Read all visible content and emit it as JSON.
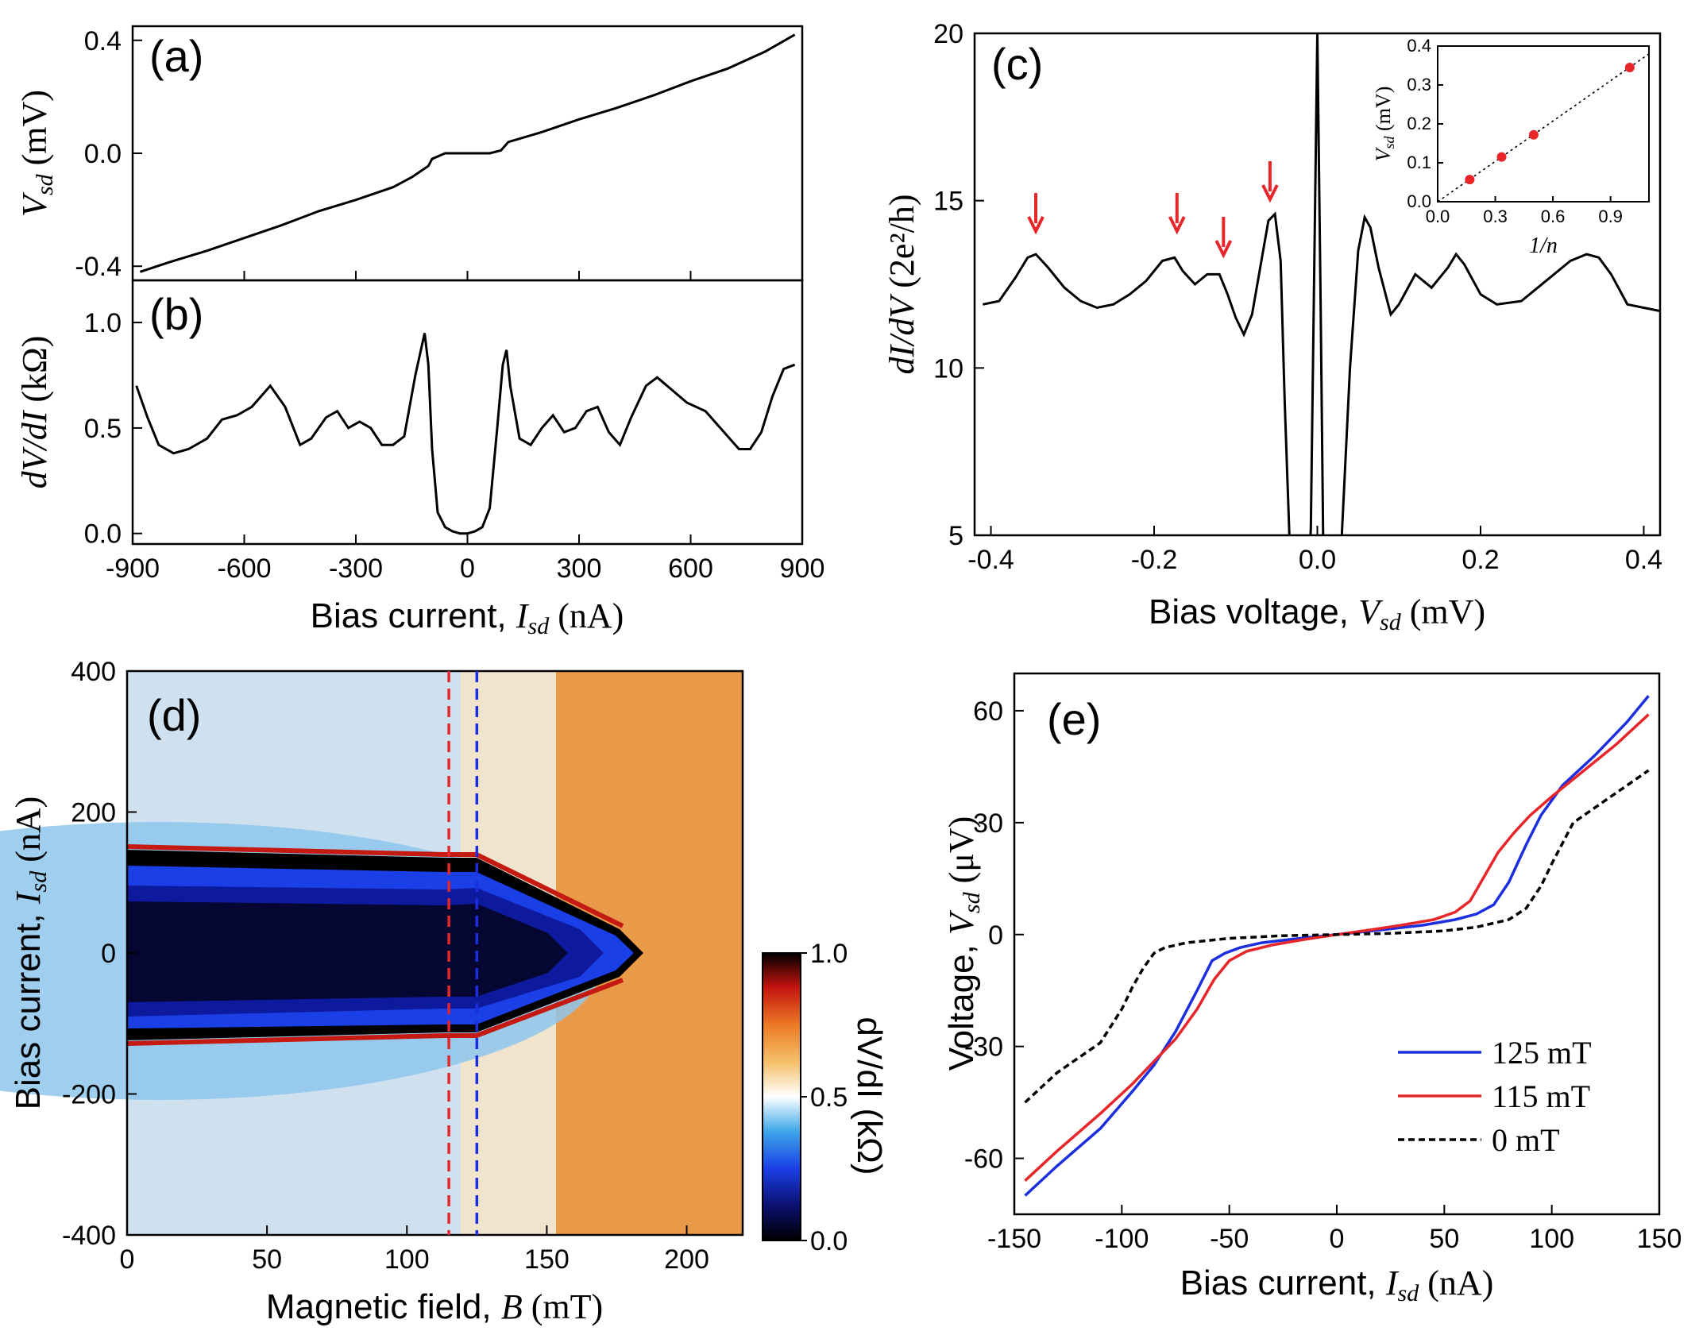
{
  "chart_data": [
    {
      "panel": "(a)",
      "type": "line",
      "xlim": [
        -900,
        900
      ],
      "ylim": [
        -0.45,
        0.45
      ],
      "xticks": [
        "-900",
        "-600",
        "-300",
        "0",
        "300",
        "600",
        "900"
      ],
      "yticks": [
        "-0.4",
        "0.0",
        "0.4"
      ],
      "ylabel": {
        "symbol": "V",
        "sub": "sd",
        "unit": " (mV)"
      },
      "series": [
        {
          "x": [
            -880,
            -800,
            -700,
            -600,
            -500,
            -400,
            -300,
            -200,
            -150,
            -105,
            -95,
            -60,
            0,
            60,
            90,
            110,
            200,
            300,
            400,
            500,
            600,
            700,
            800,
            880
          ],
          "y": [
            -0.42,
            -0.385,
            -0.345,
            -0.3,
            -0.255,
            -0.205,
            -0.165,
            -0.12,
            -0.085,
            -0.045,
            -0.02,
            0.0,
            0.0,
            0.0,
            0.01,
            0.04,
            0.075,
            0.12,
            0.16,
            0.205,
            0.255,
            0.3,
            0.36,
            0.42
          ]
        }
      ]
    },
    {
      "panel": "(b)",
      "type": "line",
      "xlim": [
        -900,
        900
      ],
      "ylim": [
        -0.05,
        1.2
      ],
      "xticks": [
        "-900",
        "-600",
        "-300",
        "0",
        "300",
        "600",
        "900"
      ],
      "yticks": [
        "0.0",
        "0.5",
        "1.0"
      ],
      "xlabel": {
        "text": "Bias current, ",
        "symbol": "I",
        "sub": "sd",
        "unit": " (nA)"
      },
      "ylabel": {
        "text": "",
        "symbol": "dV/dI",
        "sub": "",
        "unit": " (kΩ)"
      },
      "series": [
        {
          "x": [
            -890,
            -860,
            -830,
            -790,
            -750,
            -700,
            -660,
            -620,
            -580,
            -530,
            -490,
            -450,
            -420,
            -380,
            -350,
            -320,
            -290,
            -260,
            -230,
            -200,
            -170,
            -140,
            -115,
            -105,
            -95,
            -80,
            -60,
            -40,
            -20,
            0,
            20,
            40,
            60,
            80,
            95,
            105,
            115,
            140,
            170,
            200,
            230,
            260,
            290,
            320,
            350,
            380,
            410,
            440,
            480,
            510,
            550,
            590,
            640,
            690,
            730,
            760,
            790,
            820,
            850,
            880
          ],
          "y": [
            0.7,
            0.55,
            0.42,
            0.38,
            0.4,
            0.45,
            0.54,
            0.56,
            0.6,
            0.7,
            0.6,
            0.42,
            0.45,
            0.55,
            0.58,
            0.5,
            0.53,
            0.5,
            0.42,
            0.42,
            0.46,
            0.75,
            0.95,
            0.8,
            0.4,
            0.1,
            0.03,
            0.01,
            0.0,
            0.0,
            0.01,
            0.03,
            0.12,
            0.5,
            0.8,
            0.87,
            0.7,
            0.45,
            0.42,
            0.5,
            0.56,
            0.48,
            0.5,
            0.58,
            0.6,
            0.48,
            0.42,
            0.55,
            0.7,
            0.74,
            0.68,
            0.62,
            0.58,
            0.48,
            0.4,
            0.4,
            0.48,
            0.65,
            0.78,
            0.8
          ]
        }
      ]
    },
    {
      "panel": "(c)",
      "type": "line",
      "xlim": [
        -0.42,
        0.42
      ],
      "ylim": [
        5,
        20
      ],
      "xticks": [
        "-0.4",
        "-0.2",
        "0.0",
        "0.2",
        "0.4"
      ],
      "yticks": [
        "5",
        "10",
        "15",
        "20"
      ],
      "xlabel": {
        "text": "Bias voltage, ",
        "symbol": "V",
        "sub": "sd",
        "unit": " (mV)"
      },
      "ylabel": {
        "text": "",
        "symbol": "dI/dV",
        "sub": "",
        "unit": " (2e²/h)"
      },
      "annotations": "arrows",
      "arrows_x": [
        -0.345,
        -0.172,
        -0.115,
        -0.058
      ],
      "series": [
        {
          "x": [
            -0.41,
            -0.39,
            -0.37,
            -0.355,
            -0.345,
            -0.33,
            -0.31,
            -0.29,
            -0.27,
            -0.25,
            -0.23,
            -0.21,
            -0.19,
            -0.175,
            -0.165,
            -0.15,
            -0.135,
            -0.12,
            -0.11,
            -0.1,
            -0.09,
            -0.08,
            -0.07,
            -0.06,
            -0.052,
            -0.045,
            -0.04,
            -0.03,
            -0.015,
            -0.008,
            0.0,
            0.004,
            0.008,
            0.012,
            0.02,
            0.03,
            0.04,
            0.05,
            0.058,
            0.065,
            0.075,
            0.09,
            0.1,
            0.12,
            0.14,
            0.16,
            0.17,
            0.18,
            0.2,
            0.22,
            0.25,
            0.28,
            0.31,
            0.33,
            0.345,
            0.36,
            0.38,
            0.4,
            0.42
          ],
          "y": [
            11.9,
            12.0,
            12.7,
            13.3,
            13.4,
            13.0,
            12.4,
            12.0,
            11.8,
            11.9,
            12.2,
            12.6,
            13.2,
            13.3,
            12.9,
            12.5,
            12.8,
            12.8,
            12.2,
            11.5,
            11.0,
            11.6,
            13.0,
            14.4,
            14.6,
            13.2,
            9.0,
            2.0,
            2.0,
            5.2,
            20.0,
            12.0,
            3.0,
            2.0,
            2.0,
            5.0,
            10.0,
            13.5,
            14.5,
            14.2,
            13.0,
            11.6,
            11.9,
            12.8,
            12.4,
            13.0,
            13.4,
            13.1,
            12.2,
            11.9,
            12.0,
            12.6,
            13.2,
            13.4,
            13.3,
            12.8,
            11.9,
            11.8,
            11.7
          ]
        }
      ]
    },
    {
      "panel": "(c) inset",
      "type": "scatter",
      "xlim": [
        0,
        1.1
      ],
      "ylim": [
        0,
        0.4
      ],
      "xticks": [
        "0.0",
        "0.3",
        "0.6",
        "0.9"
      ],
      "yticks": [
        "0.0",
        "0.1",
        "0.2",
        "0.3",
        "0.4"
      ],
      "xlabel": {
        "text": "",
        "symbol": "1/n",
        "sub": "",
        "unit": ""
      },
      "ylabel": {
        "text": "",
        "symbol": "V",
        "sub": "sd",
        "unit": " (mV)"
      },
      "series": [
        {
          "x": [
            0.167,
            0.333,
            0.5,
            1.0
          ],
          "y": [
            0.057,
            0.115,
            0.172,
            0.345
          ]
        }
      ],
      "fit": {
        "x": [
          0,
          1.1
        ],
        "y": [
          0,
          0.38
        ]
      }
    },
    {
      "panel": "(d)",
      "type": "heatmap",
      "xlim": [
        0,
        220
      ],
      "ylim": [
        -400,
        400
      ],
      "xticks": [
        "0",
        "50",
        "100",
        "150",
        "200"
      ],
      "yticks": [
        "-400",
        "-200",
        "0",
        "200",
        "400"
      ],
      "xlabel": {
        "text": "Magnetic field, ",
        "symbol": "B",
        "sub": "",
        "unit": " (mT)"
      },
      "ylabel": {
        "text": "Bias current, ",
        "symbol": "I",
        "sub": "sd",
        "unit": " (nA)"
      },
      "vlines": [
        {
          "x": 115,
          "color": "#e8262a"
        },
        {
          "x": 125,
          "color": "#1b2ee0"
        }
      ],
      "colorbar": {
        "range": [
          0.0,
          1.0
        ],
        "ticks": [
          "0.0",
          "0.5",
          "1.0"
        ],
        "label": "dV/dI (kΩ)"
      }
    },
    {
      "panel": "(e)",
      "type": "line",
      "xlim": [
        -150,
        150
      ],
      "ylim": [
        -75,
        70
      ],
      "xticks": [
        "-150",
        "-100",
        "-50",
        "0",
        "50",
        "100",
        "150"
      ],
      "yticks": [
        "-60",
        "-30",
        "0",
        "30",
        "60"
      ],
      "xlabel": {
        "text": "Bias current, ",
        "symbol": "I",
        "sub": "sd",
        "unit": " (nA)"
      },
      "ylabel": {
        "text": "Voltage, ",
        "symbol": "V",
        "sub": "sd",
        "unit": " (μV)"
      },
      "legend": "bottom-right",
      "series": [
        {
          "name": "125 mT",
          "color": "#1b2ee0",
          "dash": false,
          "x": [
            -145,
            -130,
            -110,
            -95,
            -85,
            -75,
            -65,
            -58,
            -52,
            -45,
            -35,
            -20,
            0,
            20,
            40,
            55,
            65,
            73,
            80,
            88,
            95,
            105,
            120,
            135,
            145
          ],
          "y": [
            -70,
            -62,
            -52,
            -42,
            -35,
            -26,
            -15,
            -7,
            -5,
            -3.5,
            -2.2,
            -1.2,
            0,
            1.2,
            2.5,
            4,
            5.5,
            8,
            14,
            24,
            32,
            40,
            48,
            57,
            64
          ]
        },
        {
          "name": "115 mT",
          "color": "#e8262a",
          "dash": false,
          "x": [
            -145,
            -130,
            -110,
            -95,
            -85,
            -75,
            -65,
            -57,
            -50,
            -42,
            -30,
            -15,
            0,
            15,
            30,
            45,
            55,
            62,
            68,
            75,
            82,
            90,
            100,
            115,
            130,
            145
          ],
          "y": [
            -66,
            -58,
            -48,
            -40,
            -34,
            -28,
            -20,
            -12,
            -7,
            -4.5,
            -2.8,
            -1.3,
            0,
            1.2,
            2.5,
            4,
            6,
            9,
            15,
            22,
            27,
            32,
            37,
            44,
            51,
            59
          ]
        },
        {
          "name": "0 mT",
          "color": "#000000",
          "dash": true,
          "x": [
            -145,
            -130,
            -110,
            -100,
            -95,
            -90,
            -85,
            -80,
            -70,
            -50,
            -25,
            0,
            25,
            50,
            65,
            80,
            88,
            95,
            100,
            110,
            120,
            135,
            145
          ],
          "y": [
            -45,
            -37,
            -29,
            -20,
            -14,
            -9,
            -5,
            -3.5,
            -2.2,
            -1.0,
            -0.3,
            0,
            0.3,
            1.0,
            2.0,
            4,
            7,
            13,
            19,
            30,
            34,
            40,
            44
          ]
        }
      ]
    }
  ]
}
